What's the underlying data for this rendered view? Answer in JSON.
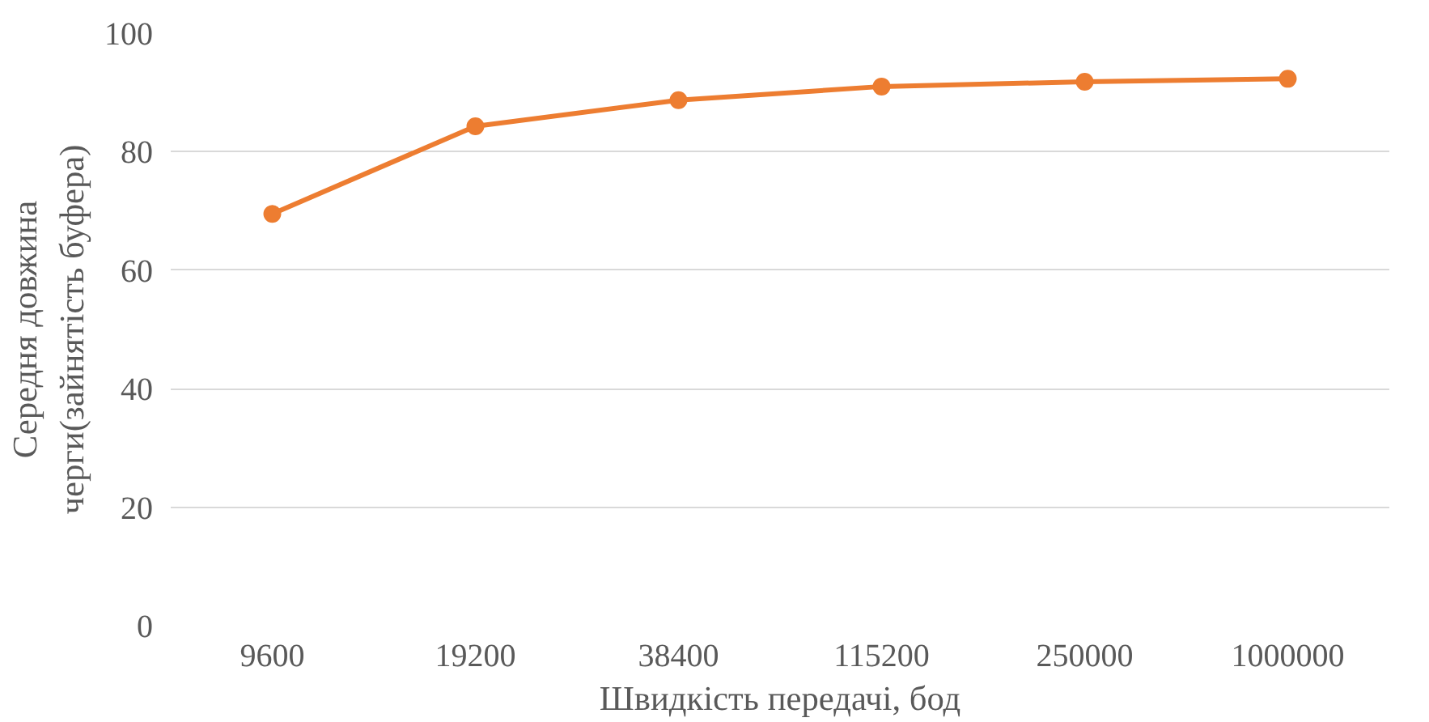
{
  "chart_data": {
    "type": "line",
    "xlabel": "Швидкість передачі, бод",
    "ylabel": "Середня довжина черги(зайнятість буфера)",
    "categories": [
      "9600",
      "19200",
      "38400",
      "115200",
      "250000",
      "1000000"
    ],
    "series": [
      {
        "color": "#ed7d31",
        "values": [
          69.5,
          84.3,
          88.7,
          91.0,
          91.8,
          92.3
        ]
      }
    ],
    "ylim": [
      0,
      100
    ],
    "yticks": [
      0,
      20,
      40,
      60,
      80,
      100
    ],
    "grid": "y",
    "marker": "circle",
    "line_style": "solid"
  }
}
